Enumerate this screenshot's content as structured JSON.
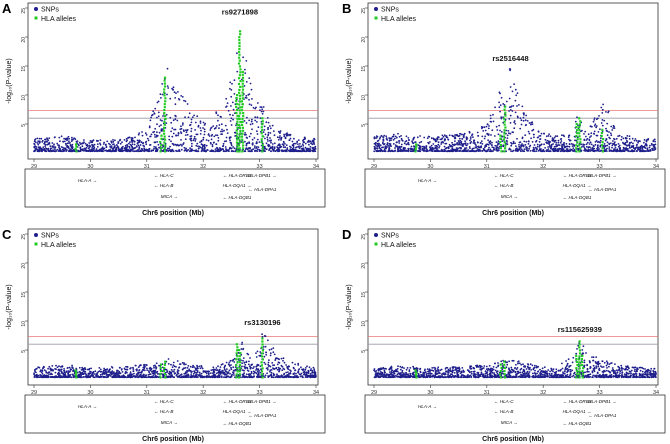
{
  "colors": {
    "snp": "#1f1f8c",
    "hla": "#22cc22",
    "threshold_red": "#e87878",
    "threshold_grey": "#9a9aa8",
    "axis": "#000000"
  },
  "shared": {
    "legend": {
      "snps": "SNPs",
      "hla": "HLA alleles"
    },
    "ylabel": "-log₁₀(P-value)",
    "xlabel": "Chr6 position (Mb)",
    "x_ticks": [
      "29",
      "30",
      "31",
      "32",
      "33",
      "34"
    ],
    "y_ticks": [
      "5",
      "10",
      "15",
      "20",
      "25"
    ],
    "genes": [
      {
        "label": "HLA-A",
        "arrow": "right"
      },
      {
        "label": "HLA-C",
        "arrow": "left"
      },
      {
        "label": "HLA-B",
        "arrow": "left"
      },
      {
        "label": "MICA",
        "arrow": "right"
      },
      {
        "label": "HLA-DRB1",
        "arrow": "left"
      },
      {
        "label": "HLA-DQA1",
        "arrow": "right"
      },
      {
        "label": "HLA-DQB1",
        "arrow": "left"
      },
      {
        "label": "HLA-DPB1",
        "arrow": "right"
      },
      {
        "label": "HLA-DPA1",
        "arrow": "left"
      }
    ]
  },
  "chart_data": [
    {
      "panel": "A",
      "type": "scatter",
      "title": "rs9271898",
      "xlabel": "Chr6 position (Mb)",
      "ylabel": "-log10(P-value)",
      "xlim": [
        29,
        34
      ],
      "ylim": [
        0,
        25
      ],
      "lines": {
        "red": 7.3,
        "grey": 6.0
      },
      "series": [
        {
          "name": "SNPs",
          "profile": [
            [
              29,
              2.5
            ],
            [
              29.5,
              3
            ],
            [
              30,
              2.2
            ],
            [
              30.6,
              2.4
            ],
            [
              31.0,
              4
            ],
            [
              31.2,
              10
            ],
            [
              31.35,
              16.5
            ],
            [
              31.5,
              12
            ],
            [
              31.8,
              8
            ],
            [
              32.1,
              6
            ],
            [
              32.4,
              9
            ],
            [
              32.6,
              18
            ],
            [
              32.65,
              23
            ],
            [
              32.75,
              17
            ],
            [
              32.9,
              9
            ],
            [
              33.05,
              8.5
            ],
            [
              33.2,
              5
            ],
            [
              33.6,
              3
            ],
            [
              34,
              2.5
            ]
          ]
        },
        {
          "name": "HLA alleles",
          "x": [
            29.75,
            31.25,
            31.32,
            32.6,
            32.65,
            32.7,
            33.05
          ],
          "y": [
            1.5,
            3,
            13,
            10,
            21,
            14,
            6
          ]
        }
      ],
      "annotation": {
        "label": "rs9271898",
        "x": 32.65,
        "y": 23.5
      }
    },
    {
      "panel": "B",
      "type": "scatter",
      "title": "rs2516448",
      "xlabel": "Chr6 position (Mb)",
      "ylabel": "-log10(P-value)",
      "xlim": [
        29,
        34
      ],
      "ylim": [
        0,
        25
      ],
      "lines": {
        "red": 7.3,
        "grey": 6.0
      },
      "series": [
        {
          "name": "SNPs",
          "profile": [
            [
              29,
              3
            ],
            [
              29.5,
              3.5
            ],
            [
              30,
              2.8
            ],
            [
              30.6,
              3.5
            ],
            [
              31.0,
              5
            ],
            [
              31.2,
              10
            ],
            [
              31.4,
              15
            ],
            [
              31.6,
              9
            ],
            [
              31.9,
              4
            ],
            [
              32.2,
              3
            ],
            [
              32.55,
              4
            ],
            [
              32.6,
              6.5
            ],
            [
              32.8,
              4
            ],
            [
              33.0,
              8
            ],
            [
              33.1,
              9
            ],
            [
              33.3,
              3.5
            ],
            [
              33.7,
              2.5
            ],
            [
              34,
              2.5
            ]
          ]
        },
        {
          "name": "HLA alleles",
          "x": [
            29.75,
            31.25,
            31.32,
            32.6,
            32.65,
            33.05
          ],
          "y": [
            1.5,
            3,
            8,
            5,
            6,
            4
          ]
        }
      ],
      "annotation": {
        "label": "rs2516448",
        "x": 31.42,
        "y": 15.5
      }
    },
    {
      "panel": "C",
      "type": "scatter",
      "title": "rs3130196",
      "xlabel": "Chr6 position (Mb)",
      "ylabel": "-log10(P-value)",
      "xlim": [
        29,
        34
      ],
      "ylim": [
        0,
        25
      ],
      "lines": {
        "red": 7.3,
        "grey": 6.0
      },
      "series": [
        {
          "name": "SNPs",
          "profile": [
            [
              29,
              2
            ],
            [
              29.5,
              2.5
            ],
            [
              30,
              2
            ],
            [
              30.6,
              2.2
            ],
            [
              31.0,
              2.5
            ],
            [
              31.2,
              3
            ],
            [
              31.4,
              3.5
            ],
            [
              31.8,
              2.5
            ],
            [
              32.2,
              2
            ],
            [
              32.55,
              3.5
            ],
            [
              32.7,
              6.5
            ],
            [
              32.85,
              4
            ],
            [
              33.0,
              6
            ],
            [
              33.05,
              8.5
            ],
            [
              33.2,
              6
            ],
            [
              33.5,
              3
            ],
            [
              34,
              2
            ]
          ]
        },
        {
          "name": "HLA alleles",
          "x": [
            29.75,
            31.25,
            31.32,
            32.6,
            32.65,
            33.05
          ],
          "y": [
            1.5,
            2.5,
            3,
            6,
            5,
            7
          ]
        }
      ],
      "annotation": {
        "label": "rs3130196",
        "x": 33.05,
        "y": 9.0
      }
    },
    {
      "panel": "D",
      "type": "scatter",
      "title": "rs115625939",
      "xlabel": "Chr6 position (Mb)",
      "ylabel": "-log10(P-value)",
      "xlim": [
        29,
        34
      ],
      "ylim": [
        0,
        25
      ],
      "lines": {
        "red": 7.3,
        "grey": 6.0
      },
      "series": [
        {
          "name": "SNPs",
          "profile": [
            [
              29,
              2
            ],
            [
              29.5,
              2.5
            ],
            [
              30,
              2
            ],
            [
              30.6,
              2.2
            ],
            [
              31.0,
              2.5
            ],
            [
              31.2,
              3
            ],
            [
              31.4,
              3.5
            ],
            [
              31.8,
              2.5
            ],
            [
              32.2,
              2
            ],
            [
              32.55,
              4
            ],
            [
              32.65,
              7
            ],
            [
              32.75,
              5
            ],
            [
              33.0,
              3.5
            ],
            [
              33.3,
              2.5
            ],
            [
              33.7,
              2
            ],
            [
              34,
              2
            ]
          ]
        },
        {
          "name": "HLA alleles",
          "x": [
            29.75,
            31.25,
            31.32,
            32.6,
            32.65,
            32.7
          ],
          "y": [
            1.5,
            2.5,
            3,
            4,
            6.5,
            4
          ]
        }
      ],
      "annotation": {
        "label": "rs115625939",
        "x": 32.65,
        "y": 7.8
      }
    }
  ]
}
